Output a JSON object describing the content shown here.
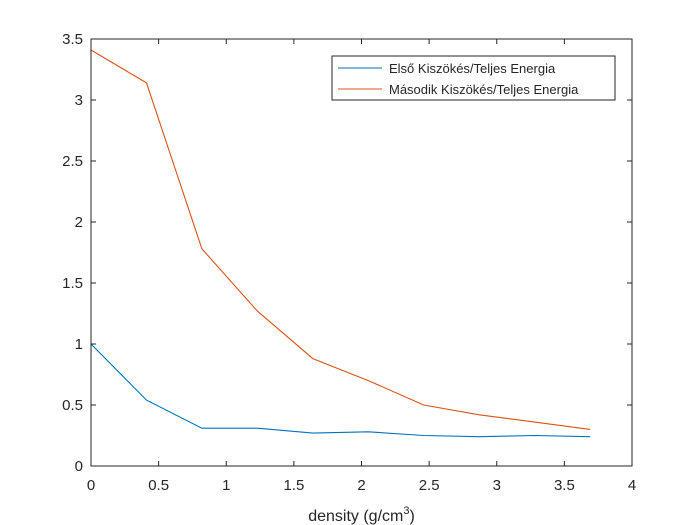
{
  "chart_data": {
    "type": "line",
    "xlabel": "density (g/cm",
    "xlabel_sup": "3",
    "xlabel_suffix": ")",
    "ylabel": "",
    "xlim": [
      0,
      4
    ],
    "ylim": [
      0,
      3.5
    ],
    "x_ticks": [
      0,
      0.5,
      1,
      1.5,
      2,
      2.5,
      3,
      3.5,
      4
    ],
    "y_ticks": [
      0,
      0.5,
      1,
      1.5,
      2,
      2.5,
      3,
      3.5
    ],
    "grid": false,
    "legend_position": "top-right",
    "series": [
      {
        "name": "Első Kiszökés/Teljes Energia",
        "color": "#0072BD",
        "x": [
          0,
          0.41,
          0.82,
          1.23,
          1.64,
          2.05,
          2.46,
          2.87,
          3.28,
          3.69
        ],
        "y": [
          1.0,
          0.54,
          0.31,
          0.31,
          0.27,
          0.28,
          0.25,
          0.24,
          0.25,
          0.24
        ]
      },
      {
        "name": "Második Kiszökés/Teljes Energia",
        "color": "#D95319",
        "x": [
          0,
          0.41,
          0.82,
          1.23,
          1.64,
          2.05,
          2.46,
          2.87,
          3.28,
          3.69
        ],
        "y": [
          3.41,
          3.14,
          1.78,
          1.27,
          0.88,
          0.7,
          0.5,
          0.42,
          0.36,
          0.3
        ]
      }
    ]
  }
}
